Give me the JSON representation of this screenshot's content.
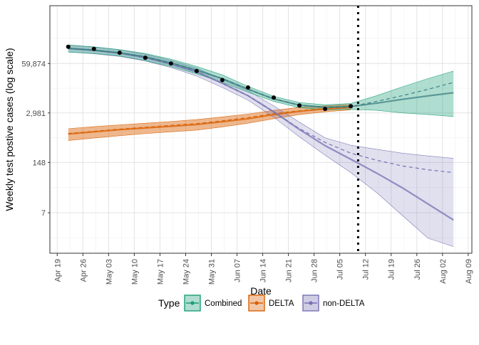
{
  "chart_data": {
    "type": "line",
    "title": "",
    "xlabel": "Date",
    "ylabel": "Weekly test postive cases (log scale)",
    "y_scale": "log",
    "x_axis": {
      "type": "date",
      "range": [
        "2021-04-17",
        "2021-08-10"
      ],
      "tick_dates": [
        "2021-04-19",
        "2021-04-26",
        "2021-05-03",
        "2021-05-10",
        "2021-05-17",
        "2021-05-24",
        "2021-05-31",
        "2021-06-07",
        "2021-06-14",
        "2021-06-21",
        "2021-06-28",
        "2021-07-05",
        "2021-07-12",
        "2021-07-19",
        "2021-07-26",
        "2021-08-02",
        "2021-08-09"
      ],
      "tick_labels": [
        "Apr 19",
        "Apr 26",
        "May 03",
        "May 10",
        "May 17",
        "May 24",
        "May 31",
        "Jun 07",
        "Jun 14",
        "Jun 21",
        "Jun 28",
        "Jul 05",
        "Jul 12",
        "Jul 19",
        "Jul 26",
        "Aug 02",
        "Aug 09"
      ]
    },
    "y_axis": {
      "range": [
        0.6,
        2000000
      ],
      "tick_values": [
        7,
        148,
        2981,
        59874
      ],
      "tick_labels": [
        "7",
        "148",
        "2,981",
        "59,874"
      ]
    },
    "grid": true,
    "vertical_line": {
      "date": "2021-07-10",
      "style": "dotted"
    },
    "legend": {
      "title": "Type",
      "position": "bottom",
      "entries": [
        "Combined",
        "DELTA",
        "non-DELTA"
      ]
    },
    "colors": {
      "Combined": "#1b9e77",
      "DELTA": "#d95f02",
      "non-DELTA": "#7570b3",
      "overlap": "#8a7a3a",
      "observed": "#000000"
    },
    "observed": {
      "name": "Observed",
      "x": [
        "2021-04-22",
        "2021-04-29",
        "2021-05-06",
        "2021-05-13",
        "2021-05-20",
        "2021-05-27",
        "2021-06-03",
        "2021-06-10",
        "2021-06-17",
        "2021-06-24",
        "2021-07-01",
        "2021-07-08"
      ],
      "values": [
        165000,
        145000,
        115000,
        85000,
        60000,
        38000,
        22000,
        14000,
        7600,
        4700,
        3800,
        4500
      ]
    },
    "series": [
      {
        "name": "Combined",
        "x": [
          "2021-04-22",
          "2021-04-29",
          "2021-05-06",
          "2021-05-13",
          "2021-05-20",
          "2021-05-27",
          "2021-06-03",
          "2021-06-10",
          "2021-06-17",
          "2021-06-24",
          "2021-07-01",
          "2021-07-08",
          "2021-07-15",
          "2021-07-22",
          "2021-07-29",
          "2021-08-05"
        ],
        "values": [
          150000,
          135000,
          115000,
          90000,
          62000,
          40000,
          24000,
          12600,
          7000,
          4800,
          4200,
          4400,
          5400,
          6800,
          8400,
          10200
        ],
        "lower": [
          120000,
          110000,
          95000,
          72000,
          50000,
          32000,
          19000,
          10500,
          6000,
          4100,
          3600,
          3700,
          3500,
          3000,
          2700,
          2400
        ],
        "upper": [
          185000,
          165000,
          140000,
          110000,
          78000,
          50000,
          30000,
          15000,
          8200,
          5600,
          4900,
          5300,
          8500,
          14500,
          24000,
          38000
        ],
        "dashed": [
          150000,
          135000,
          115000,
          90000,
          62000,
          40000,
          24000,
          12600,
          7000,
          4800,
          4200,
          4400,
          6000,
          8500,
          12500,
          19000
        ]
      },
      {
        "name": "DELTA",
        "x": [
          "2021-04-22",
          "2021-04-29",
          "2021-05-06",
          "2021-05-13",
          "2021-05-20",
          "2021-05-27",
          "2021-06-03",
          "2021-06-10",
          "2021-06-17",
          "2021-06-24",
          "2021-07-01",
          "2021-07-08"
        ],
        "values": [
          830,
          950,
          1080,
          1200,
          1330,
          1480,
          1750,
          2100,
          2700,
          3300,
          3800,
          4200
        ],
        "lower": [
          560,
          650,
          750,
          850,
          950,
          1050,
          1280,
          1600,
          2100,
          2700,
          3200,
          3600
        ],
        "upper": [
          1150,
          1300,
          1450,
          1600,
          1780,
          2000,
          2350,
          2800,
          3500,
          4200,
          4600,
          5000
        ],
        "dashed": [
          860,
          980,
          1120,
          1250,
          1400,
          1560,
          1850,
          2250,
          2850,
          3400,
          3900,
          4300
        ]
      },
      {
        "name": "non-DELTA",
        "x": [
          "2021-04-22",
          "2021-04-29",
          "2021-05-06",
          "2021-05-13",
          "2021-05-20",
          "2021-05-27",
          "2021-06-03",
          "2021-06-10",
          "2021-06-17",
          "2021-06-24",
          "2021-07-01",
          "2021-07-08",
          "2021-07-15",
          "2021-07-22",
          "2021-07-29",
          "2021-08-05"
        ],
        "values": [
          150000,
          133000,
          112000,
          86000,
          58000,
          36000,
          18000,
          8500,
          3200,
          1100,
          410,
          180,
          78,
          32,
          12,
          4.5
        ],
        "lower": [
          120000,
          108000,
          92000,
          70000,
          47000,
          28000,
          14000,
          6500,
          2300,
          700,
          230,
          80,
          24,
          6,
          1.5,
          0.9
        ],
        "upper": [
          182000,
          162000,
          137000,
          105000,
          72000,
          45000,
          23000,
          11500,
          4600,
          1700,
          660,
          420,
          330,
          260,
          220,
          190
        ],
        "dashed": [
          150000,
          133000,
          112000,
          86000,
          58000,
          36000,
          18000,
          8500,
          3200,
          1150,
          500,
          260,
          170,
          120,
          95,
          80
        ]
      }
    ]
  }
}
